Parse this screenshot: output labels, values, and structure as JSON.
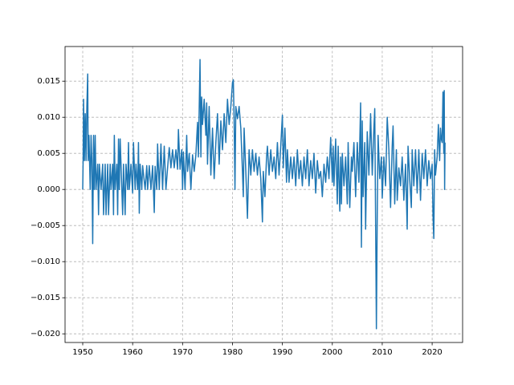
{
  "chart_data": {
    "type": "line",
    "color": "#1f77b4",
    "grid": true,
    "xlim": [
      1946.46,
      2026.1
    ],
    "ylim": [
      -0.0212,
      0.0198
    ],
    "xticks": [
      1950,
      1960,
      1970,
      1980,
      1990,
      2000,
      2010,
      2020
    ],
    "yticks": [
      {
        "value": -0.02,
        "label": "−0.020"
      },
      {
        "value": -0.015,
        "label": "−0.015"
      },
      {
        "value": -0.01,
        "label": "−0.010"
      },
      {
        "value": -0.005,
        "label": "−0.005"
      },
      {
        "value": 0,
        "label": "0.000"
      },
      0.005,
      {
        "value": 0.01,
        "label": "0.010"
      },
      0.015
    ],
    "x": [
      1950.0,
      1950.08,
      1950.17,
      1950.33,
      1950.5,
      1950.67,
      1950.83,
      1951.0,
      1951.08,
      1951.25,
      1951.5,
      1951.67,
      1951.83,
      1952.0,
      1952.17,
      1952.33,
      1952.5,
      1952.67,
      1953.0,
      1953.17,
      1953.33,
      1953.67,
      1954.0,
      1954.17,
      1954.5,
      1954.67,
      1955.0,
      1955.17,
      1955.5,
      1955.67,
      1956.0,
      1956.17,
      1956.33,
      1956.5,
      1956.83,
      1957.0,
      1957.17,
      1957.33,
      1957.5,
      1957.67,
      1958.0,
      1958.17,
      1958.5,
      1958.67,
      1959.0,
      1959.17,
      1959.33,
      1959.67,
      1960.0,
      1960.17,
      1960.5,
      1960.67,
      1961.0,
      1961.17,
      1961.33,
      1961.5,
      1961.83,
      1962.0,
      1962.5,
      1962.83,
      1963.0,
      1963.33,
      1963.67,
      1964.0,
      1964.33,
      1964.5,
      1964.83,
      1965.0,
      1965.33,
      1965.67,
      1966.0,
      1966.33,
      1966.67,
      1967.0,
      1967.33,
      1967.67,
      1968.0,
      1968.33,
      1968.67,
      1969.0,
      1969.17,
      1969.5,
      1969.83,
      1970.0,
      1970.17,
      1970.5,
      1970.83,
      1971.0,
      1971.33,
      1971.67,
      1972.0,
      1972.33,
      1972.67,
      1973.0,
      1973.17,
      1973.5,
      1973.67,
      1973.83,
      1974.0,
      1974.33,
      1974.67,
      1974.83,
      1975.0,
      1975.33,
      1975.67,
      1976.0,
      1976.33,
      1976.67,
      1977.0,
      1977.33,
      1977.67,
      1978.0,
      1978.33,
      1978.67,
      1979.0,
      1979.33,
      1979.67,
      1980.0,
      1980.17,
      1980.33,
      1980.5,
      1980.67,
      1981.0,
      1981.33,
      1981.67,
      1982.0,
      1982.17,
      1982.33,
      1982.67,
      1983.0,
      1983.33,
      1983.67,
      1984.0,
      1984.33,
      1984.67,
      1985.0,
      1985.33,
      1985.67,
      1986.0,
      1986.17,
      1986.5,
      1986.83,
      1987.0,
      1987.33,
      1987.67,
      1988.0,
      1988.33,
      1988.67,
      1989.0,
      1989.33,
      1989.67,
      1990.0,
      1990.17,
      1990.5,
      1990.83,
      1991.0,
      1991.33,
      1991.67,
      1992.0,
      1992.33,
      1992.67,
      1993.0,
      1993.33,
      1993.67,
      1994.0,
      1994.33,
      1994.67,
      1995.0,
      1995.33,
      1995.67,
      1996.0,
      1996.33,
      1996.67,
      1997.0,
      1997.33,
      1997.67,
      1998.0,
      1998.33,
      1998.67,
      1999.0,
      1999.33,
      1999.67,
      2000.0,
      2000.17,
      2000.33,
      2000.67,
      2001.0,
      2001.17,
      2001.5,
      2001.67,
      2001.83,
      2002.0,
      2002.33,
      2002.67,
      2003.0,
      2003.17,
      2003.5,
      2003.83,
      2004.0,
      2004.33,
      2004.67,
      2005.0,
      2005.33,
      2005.67,
      2005.83,
      2006.0,
      2006.17,
      2006.5,
      2006.67,
      2007.0,
      2007.33,
      2007.67,
      2008.0,
      2008.33,
      2008.5,
      2008.67,
      2008.83,
      2009.0,
      2009.17,
      2009.5,
      2009.83,
      2010.0,
      2010.33,
      2010.67,
      2011.0,
      2011.33,
      2011.67,
      2012.0,
      2012.17,
      2012.5,
      2012.83,
      2013.0,
      2013.33,
      2013.67,
      2014.0,
      2014.33,
      2014.67,
      2015.0,
      2015.17,
      2015.5,
      2015.83,
      2016.0,
      2016.33,
      2016.67,
      2017.0,
      2017.33,
      2017.67,
      2018.0,
      2018.33,
      2018.67,
      2019.0,
      2019.33,
      2019.67,
      2020.0,
      2020.17,
      2020.33,
      2020.5,
      2020.67,
      2021.0,
      2021.25,
      2021.5,
      2021.67,
      2021.83,
      2022.0,
      2022.17,
      2022.33,
      2022.42,
      2022.5,
      2022.58
    ],
    "values": [
      0,
      0.004,
      0.0125,
      0.004,
      0.0105,
      0.004,
      0.0115,
      0.016,
      0.004,
      0.0075,
      0,
      0.0075,
      0.004,
      -0.0075,
      0.0075,
      0,
      0.0075,
      0,
      0.0035,
      -0.0035,
      0.0035,
      0,
      0.0035,
      -0.0035,
      0.0035,
      -0.0035,
      0.0035,
      -0.0035,
      0.0035,
      0,
      0.0035,
      -0.0035,
      0.0075,
      0,
      0.0035,
      -0.0035,
      0.007,
      0,
      0.007,
      0.0035,
      -0.0035,
      0.0035,
      -0.0035,
      0.0035,
      0,
      0.0065,
      0,
      0.0035,
      -0.0005,
      0.0065,
      0,
      0.0035,
      0,
      0.0065,
      -0.0033,
      0.0035,
      0,
      0.0033,
      0,
      0.0033,
      0,
      0.0033,
      0,
      0.0033,
      -0.0032,
      0.0032,
      0,
      0.0063,
      0,
      0.0063,
      0,
      0.006,
      0,
      0.003,
      0.0058,
      0.003,
      0.0055,
      0.003,
      0.0055,
      0.0028,
      0.0083,
      0.0028,
      0.0055,
      0,
      0.0052,
      0,
      0.0075,
      0.0025,
      0.005,
      0,
      0.0048,
      0.0025,
      0.0048,
      0.0093,
      0.0045,
      0.018,
      0.0045,
      0.0128,
      0.009,
      0.0125,
      0.0075,
      0.012,
      0.0035,
      0.0115,
      0.002,
      0.0085,
      0.0015,
      0.0065,
      0.0105,
      0.0035,
      0.0095,
      0.0055,
      0.0105,
      0.0065,
      0.0125,
      0.009,
      0.0115,
      0.0148,
      0.0152,
      0.0095,
      0,
      0.0115,
      0.0098,
      0.0115,
      0.0085,
      0.0025,
      -0.001,
      0.0085,
      0.0025,
      -0.004,
      0.0055,
      0.002,
      0.0055,
      0.0025,
      0.005,
      0.002,
      0.0045,
      0.0015,
      -0.0045,
      0.0025,
      -0.001,
      0.0045,
      0.006,
      0.002,
      0.0055,
      0.0025,
      0.0045,
      0.0015,
      0.0065,
      0.002,
      0.006,
      0.0103,
      0.003,
      0.0085,
      0.001,
      0.0055,
      0.001,
      0.0045,
      0.0015,
      0.0045,
      0.0005,
      0.0055,
      0.0015,
      0.004,
      0.0005,
      0.0045,
      0.0015,
      0.0055,
      0.0005,
      0.004,
      0.0015,
      0.005,
      -0.0005,
      0.004,
      0.0015,
      0.0025,
      -0.001,
      0.0035,
      0.001,
      0.0045,
      0.0015,
      0.0072,
      0.001,
      0.006,
      0.0005,
      0.007,
      -0.002,
      0.006,
      -0.003,
      0.0045,
      -0.002,
      0.005,
      0.0005,
      0.0045,
      -0.002,
      0.0065,
      -0.0025,
      0.0045,
      0.0025,
      0.0065,
      -0.001,
      0.0065,
      0.001,
      0.012,
      -0.008,
      0.0095,
      -0.001,
      0.0065,
      -0.0055,
      0.008,
      0.002,
      0.0105,
      0.002,
      0.0085,
      0.0112,
      -0.004,
      -0.0193,
      -0.0035,
      0.0075,
      0.0015,
      0.0045,
      -0.0012,
      0.0045,
      0.0005,
      0.01,
      0.0055,
      -0.0025,
      0.006,
      0.0088,
      -0.002,
      0.0055,
      -0.0015,
      0.003,
      0.0005,
      0.0045,
      -0.0015,
      0.0035,
      -0.0055,
      0.006,
      0.0015,
      -0.0025,
      0.0055,
      0.0005,
      0.0055,
      -0.0005,
      0.0055,
      -0.0015,
      0.005,
      0.0015,
      0.0055,
      0.0005,
      0.004,
      0.0015,
      0.0035,
      -0.0035,
      -0.0068,
      0.0055,
      0.002,
      0.0045,
      0.009,
      0.004,
      0.0085,
      0.007,
      0.0065,
      0.0135,
      0.005,
      0.0137,
      0,
      0.0065
    ]
  }
}
